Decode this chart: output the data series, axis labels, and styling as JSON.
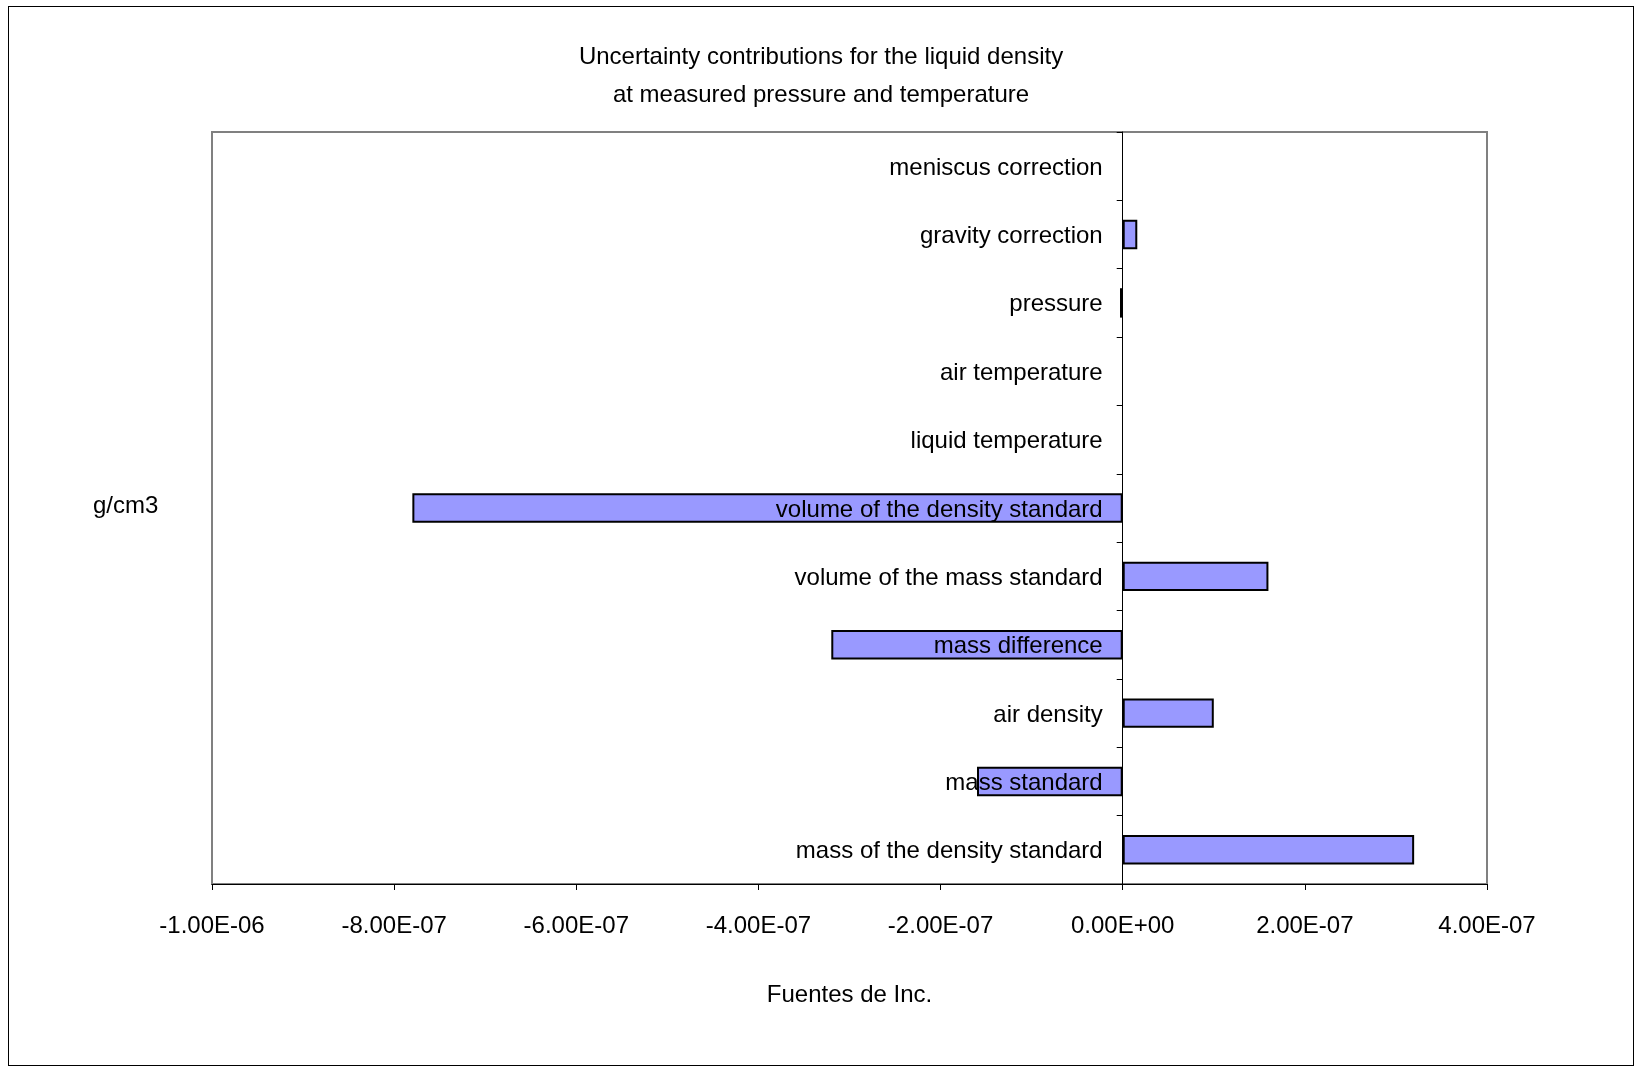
{
  "chart_data": {
    "type": "bar",
    "orientation": "horizontal",
    "title": "Uncertainty contributions for the liquid density\nat measured pressure and temperature",
    "xlabel": "Fuentes de Inc.",
    "ylabel": "g/cm3",
    "categories": [
      "meniscus correction",
      "gravity correction",
      "pressure",
      "air temperature",
      "liquid temperature",
      "volume of the density standard",
      "volume of the mass standard",
      "mass difference",
      "air density",
      "mass standard",
      "mass of the density standard"
    ],
    "values": [
      0,
      1.6e-08,
      -3e-09,
      0,
      0,
      -7.8e-07,
      1.6e-07,
      -3.2e-07,
      1e-07,
      -1.6e-07,
      3.2e-07
    ],
    "color": "#9999ff",
    "xlim": [
      -1e-06,
      4e-07
    ],
    "xticks": [
      {
        "value": -1e-06,
        "label": "-1.00E-06"
      },
      {
        "value": -8e-07,
        "label": "-8.00E-07"
      },
      {
        "value": -6e-07,
        "label": "-6.00E-07"
      },
      {
        "value": -4e-07,
        "label": "-4.00E-07"
      },
      {
        "value": -2e-07,
        "label": "-2.00E-07"
      },
      {
        "value": 0,
        "label": "0.00E+00"
      },
      {
        "value": 2e-07,
        "label": "2.00E-07"
      },
      {
        "value": 4e-07,
        "label": "4.00E-07"
      }
    ],
    "grid": false
  }
}
